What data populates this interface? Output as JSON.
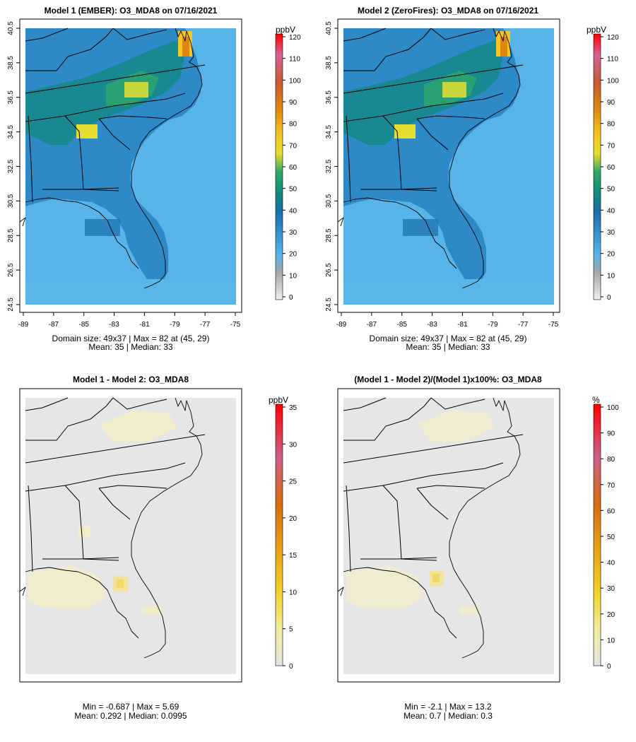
{
  "panels": [
    {
      "title": "Model 1 (EMBER): O3_MDA8 on 07/16/2021",
      "colorbar_unit": "ppbV",
      "colorbar_ticks": [
        "0",
        "10",
        "20",
        "30",
        "40",
        "50",
        "60",
        "70",
        "80",
        "90",
        "100",
        "110",
        "120"
      ],
      "info_line1": "Domain size: 49x37 | Max = 82 at (45, 29)",
      "info_line2": "Mean: 35 |  Median: 33"
    },
    {
      "title": "Model 2 (ZeroFires): O3_MDA8 on 07/16/2021",
      "colorbar_unit": "ppbV",
      "colorbar_ticks": [
        "0",
        "10",
        "20",
        "30",
        "40",
        "50",
        "60",
        "70",
        "80",
        "90",
        "100",
        "110",
        "120"
      ],
      "info_line1": "Domain size: 49x37 | Max = 82 at (45, 29)",
      "info_line2": "Mean: 35 |  Median: 33"
    },
    {
      "title": "Model 1 - Model 2: O3_MDA8",
      "colorbar_unit": "ppbV",
      "colorbar_ticks": [
        "0",
        "5",
        "10",
        "15",
        "20",
        "25",
        "30",
        "35"
      ],
      "info_line1": "Min = -0.687 | Max = 5.69",
      "info_line2": "Mean: 0.292 |  Median: 0.0995"
    },
    {
      "title": "(Model 1 - Model 2)/(Model 1)x100%: O3_MDA8",
      "colorbar_unit": "%",
      "colorbar_ticks": [
        "0",
        "10",
        "20",
        "30",
        "40",
        "50",
        "60",
        "70",
        "80",
        "90",
        "100"
      ],
      "info_line1": "Min = -2.1 | Max = 13.2",
      "info_line2": "Mean: 0.7 |  Median: 0.3"
    }
  ],
  "axes": {
    "x_ticks": [
      "-89",
      "-87",
      "-85",
      "-83",
      "-81",
      "-79",
      "-77",
      "-75"
    ],
    "y_ticks": [
      "24.5",
      "26.5",
      "28.5",
      "30.5",
      "32.5",
      "34.5",
      "36.5",
      "38.5",
      "40.5"
    ]
  },
  "chart_data": [
    {
      "type": "heatmap",
      "title": "Model 1 (EMBER): O3_MDA8 on 07/16/2021",
      "x_ticks": [
        -89,
        -87,
        -85,
        -83,
        -81,
        -79,
        -77,
        -75
      ],
      "y_ticks": [
        24.5,
        26.5,
        28.5,
        30.5,
        32.5,
        34.5,
        36.5,
        38.5,
        40.5
      ],
      "colorbar": {
        "unit": "ppbV",
        "range": [
          0,
          120
        ]
      },
      "domain_size": "49x37",
      "max": 82,
      "max_at": [
        45,
        29
      ],
      "mean": 35,
      "median": 33
    },
    {
      "type": "heatmap",
      "title": "Model 2 (ZeroFires): O3_MDA8 on 07/16/2021",
      "x_ticks": [
        -89,
        -87,
        -85,
        -83,
        -81,
        -79,
        -77,
        -75
      ],
      "y_ticks": [
        24.5,
        26.5,
        28.5,
        30.5,
        32.5,
        34.5,
        36.5,
        38.5,
        40.5
      ],
      "colorbar": {
        "unit": "ppbV",
        "range": [
          0,
          120
        ]
      },
      "domain_size": "49x37",
      "max": 82,
      "max_at": [
        45,
        29
      ],
      "mean": 35,
      "median": 33
    },
    {
      "type": "heatmap",
      "title": "Model 1 - Model 2: O3_MDA8",
      "colorbar": {
        "unit": "ppbV",
        "range": [
          0,
          35
        ]
      },
      "min": -0.687,
      "max": 5.69,
      "mean": 0.292,
      "median": 0.0995
    },
    {
      "type": "heatmap",
      "title": "(Model 1 - Model 2)/(Model 1)x100%: O3_MDA8",
      "colorbar": {
        "unit": "%",
        "range": [
          0,
          100
        ]
      },
      "min": -2.1,
      "max": 13.2,
      "mean": 0.7,
      "median": 0.3
    }
  ],
  "colors": {
    "ocean": "#56b4e9",
    "land": "#2e89c7",
    "zero_grey": "#e6e6e6"
  }
}
